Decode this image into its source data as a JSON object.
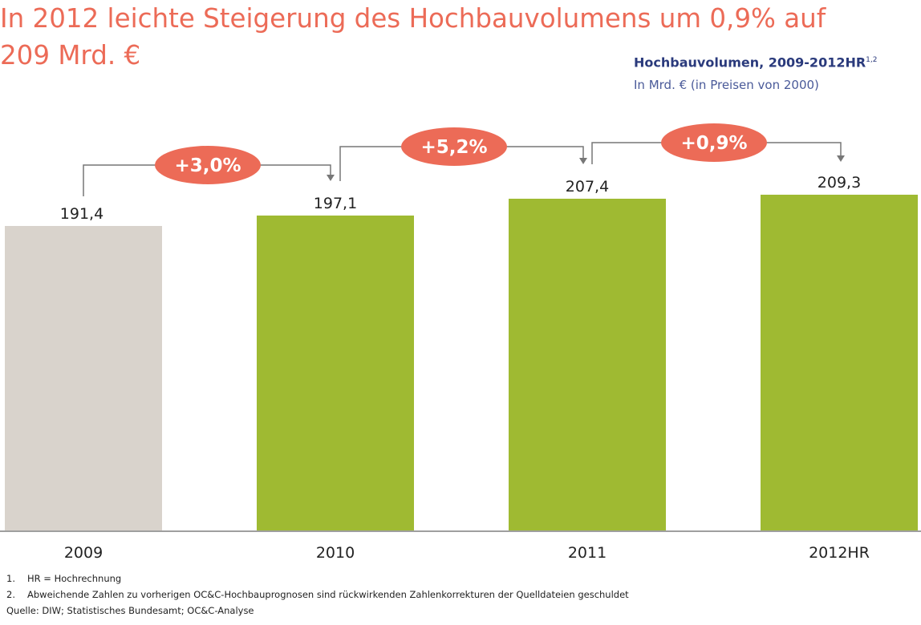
{
  "title": "In 2012 leichte Steigerung des Hochbauvolumens um 0,9% auf\n209 Mrd. €",
  "subtitle": {
    "line1": "Hochbauvolumen, 2009-2012HR",
    "line1_sup": "1,2",
    "line2": "In Mrd. € (in Preisen von 2000)"
  },
  "colors": {
    "title": "#ec6b57",
    "bar_first": "#d9d3cc",
    "bar_rest": "#9fba32",
    "pill": "#ec6b57",
    "subtitle_dark": "#2a3a7c"
  },
  "chart_data": {
    "type": "bar",
    "categories": [
      "2009",
      "2010",
      "2011",
      "2012HR"
    ],
    "values": [
      191.4,
      197.1,
      207.4,
      209.3
    ],
    "value_labels": [
      "191,4",
      "197,1",
      "207,4",
      "209,3"
    ],
    "growth_labels": [
      "+3,0%",
      "+5,2%",
      "+0,9%"
    ],
    "title": "Hochbauvolumen, 2009-2012HR",
    "xlabel": "",
    "ylabel": "In Mrd. € (in Preisen von 2000)",
    "ylim": [
      0,
      270
    ],
    "grid": false,
    "legend": "none"
  },
  "footnotes": [
    {
      "num": "1.",
      "text": "HR = Hochrechnung"
    },
    {
      "num": "2.",
      "text": "Abweichende Zahlen zu vorherigen OC&C-Hochbauprognosen sind rückwirkenden Zahlenkorrekturen der Quelldateien geschuldet"
    }
  ],
  "source": "Quelle: DIW; Statistisches Bundesamt; OC&C-Analyse"
}
